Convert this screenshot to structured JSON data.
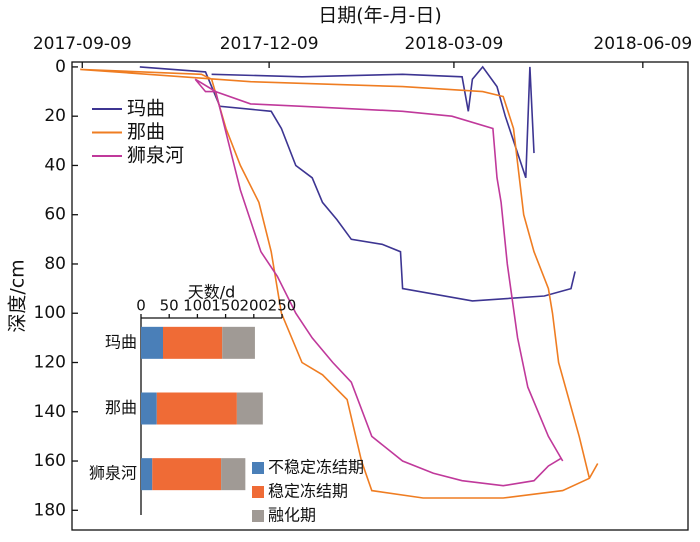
{
  "chart_data": [
    {
      "type": "line",
      "title": "日期(年-月-日)",
      "y_label": "深度/cm",
      "xlim": [
        "2017-09-04",
        "2018-07-01"
      ],
      "xticks": [
        "2017-09-09",
        "2017-12-09",
        "2018-03-09",
        "2018-06-09"
      ],
      "ylim": [
        -2,
        188
      ],
      "yticks": [
        0,
        20,
        40,
        60,
        80,
        100,
        120,
        140,
        160,
        180
      ],
      "y_inverted": true,
      "legend": "upper left",
      "series": [
        {
          "name": "玛曲",
          "color": "#3d3592",
          "x": [
            "2017-10-07",
            "2017-11-08",
            "2017-11-12",
            "2017-11-15",
            "2017-12-10",
            "2017-12-15",
            "2017-12-22",
            "2017-12-30",
            "2018-01-04",
            "2018-01-11",
            "2018-01-18",
            "2018-02-02",
            "2018-02-11",
            "2018-02-12",
            "2018-03-18",
            "2018-04-22",
            "2018-05-05",
            "2018-05-07",
            null,
            "2017-11-11",
            "2017-12-25",
            "2018-02-12",
            "2018-03-13",
            "2018-03-16",
            "2018-03-18",
            "2018-03-23",
            "2018-03-30",
            "2018-04-03",
            "2018-04-09",
            "2018-04-13",
            "2018-04-15",
            "2018-04-17"
          ],
          "values": [
            0,
            2,
            10,
            16,
            18,
            25,
            40,
            45,
            55,
            62,
            70,
            72,
            75,
            90,
            95,
            93,
            90,
            83,
            null,
            3,
            4,
            3,
            4,
            18,
            5,
            0,
            8,
            20,
            35,
            45,
            0,
            35
          ]
        },
        {
          "name": "那曲",
          "color": "#ef7d22",
          "x": [
            "2017-09-08",
            "2017-11-06",
            "2017-11-11",
            "2017-11-18",
            "2017-11-25",
            "2017-12-04",
            "2017-12-10",
            "2017-12-15",
            "2017-12-25",
            "2018-01-04",
            "2018-01-16",
            "2018-01-23",
            "2018-01-28",
            "2018-02-22",
            "2018-04-02",
            "2018-05-01",
            "2018-05-14",
            "2018-05-18",
            null,
            "2017-09-08",
            "2017-11-30",
            "2018-02-12",
            "2018-03-23",
            "2018-04-02",
            "2018-04-07",
            "2018-04-12",
            "2018-04-17",
            "2018-04-24",
            "2018-04-26",
            "2018-04-29",
            "2018-05-09",
            "2018-05-14"
          ],
          "values": [
            1,
            3,
            5,
            25,
            40,
            55,
            75,
            100,
            120,
            125,
            135,
            160,
            172,
            175,
            175,
            172,
            167,
            161,
            null,
            1,
            6,
            8,
            10,
            12,
            25,
            60,
            75,
            90,
            100,
            120,
            150,
            167
          ]
        },
        {
          "name": "狮泉河",
          "color": "#c0399b",
          "x": [
            "2017-11-03",
            "2017-11-08",
            "2017-11-13",
            "2017-11-16",
            "2017-11-25",
            "2017-12-05",
            "2017-12-13",
            "2017-12-22",
            "2017-12-30",
            "2018-01-09",
            "2018-01-18",
            "2018-01-28",
            "2018-02-12",
            "2018-02-27",
            "2018-03-13",
            "2018-04-02",
            "2018-04-17",
            "2018-04-24",
            "2018-04-30",
            null,
            "2017-11-03",
            "2017-11-13",
            "2017-11-30",
            "2017-12-25",
            "2018-02-12",
            "2018-03-08",
            "2018-03-28",
            "2018-03-30",
            "2018-04-01",
            "2018-04-04",
            "2018-04-09",
            "2018-04-14",
            "2018-04-24",
            "2018-05-01"
          ],
          "values": [
            5,
            10,
            10,
            20,
            50,
            75,
            85,
            100,
            110,
            120,
            128,
            150,
            160,
            165,
            168,
            170,
            168,
            162,
            159,
            null,
            5,
            10,
            15,
            16,
            18,
            20,
            25,
            45,
            55,
            80,
            110,
            130,
            150,
            160
          ]
        }
      ]
    },
    {
      "type": "stacked_barh",
      "x_label": "天数/d",
      "xlim": [
        0,
        250
      ],
      "xticks": [
        0,
        50,
        100,
        150,
        200,
        250
      ],
      "legend": "lower right",
      "categories": [
        "玛曲",
        "那曲",
        "狮泉河"
      ],
      "series": [
        {
          "name": "不稳定冻结期",
          "color": "#4a7fb8",
          "values": [
            39,
            28,
            20
          ]
        },
        {
          "name": "稳定冻结期",
          "color": "#ef6b36",
          "values": [
            105,
            142,
            122
          ]
        },
        {
          "name": "融化期",
          "color": "#a09a95",
          "values": [
            58,
            46,
            43
          ]
        }
      ]
    }
  ]
}
